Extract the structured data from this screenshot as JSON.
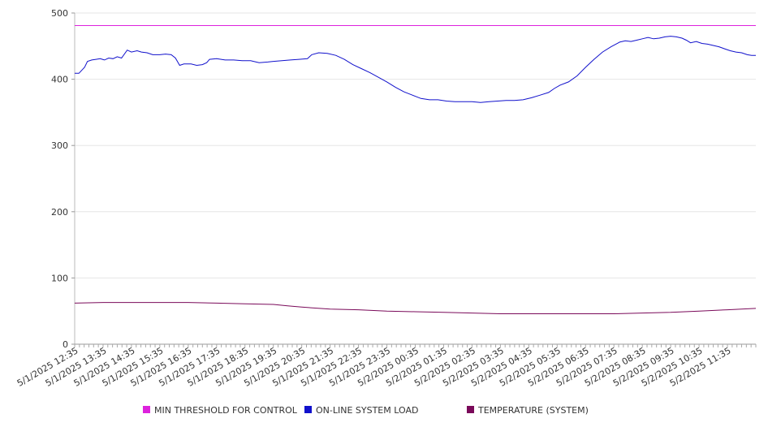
{
  "chart_data": {
    "type": "line",
    "grid": true,
    "legend_placement": "bottom",
    "ylim": [
      0,
      500
    ],
    "yticks": [
      0,
      100,
      200,
      300,
      400,
      500
    ],
    "x_tick_labels": [
      "5/1/2025 12:35",
      "5/1/2025 13:35",
      "5/1/2025 14:35",
      "5/1/2025 15:35",
      "5/1/2025 16:35",
      "5/1/2025 17:35",
      "5/1/2025 18:35",
      "5/1/2025 19:35",
      "5/1/2025 20:35",
      "5/1/2025 21:35",
      "5/1/2025 22:35",
      "5/1/2025 23:35",
      "5/2/2025 00:35",
      "5/2/2025 01:35",
      "5/2/2025 02:35",
      "5/2/2025 03:35",
      "5/2/2025 04:35",
      "5/2/2025 05:35",
      "5/2/2025 06:35",
      "5/2/2025 07:35",
      "5/2/2025 08:35",
      "5/2/2025 09:35",
      "5/2/2025 10:35",
      "5/2/2025 11:35"
    ],
    "x_range_hours": [
      0,
      24
    ],
    "series": [
      {
        "name": "MIN THRESHOLD FOR CONTROL",
        "color": "#dd22dd",
        "points": [
          [
            0,
            481
          ],
          [
            24,
            481
          ]
        ]
      },
      {
        "name": "ON-LINE SYSTEM LOAD",
        "color": "#1111cc",
        "points": [
          [
            0,
            409
          ],
          [
            0.15,
            409
          ],
          [
            0.35,
            418
          ],
          [
            0.45,
            427
          ],
          [
            0.6,
            429
          ],
          [
            0.75,
            430
          ],
          [
            0.9,
            431
          ],
          [
            1.05,
            429
          ],
          [
            1.2,
            432
          ],
          [
            1.35,
            431
          ],
          [
            1.5,
            434
          ],
          [
            1.65,
            432
          ],
          [
            1.85,
            444
          ],
          [
            2.0,
            441
          ],
          [
            2.2,
            443
          ],
          [
            2.35,
            441
          ],
          [
            2.55,
            440
          ],
          [
            2.75,
            437
          ],
          [
            3.0,
            437
          ],
          [
            3.2,
            438
          ],
          [
            3.4,
            437
          ],
          [
            3.55,
            432
          ],
          [
            3.7,
            421
          ],
          [
            3.85,
            423
          ],
          [
            4.1,
            423
          ],
          [
            4.3,
            421
          ],
          [
            4.5,
            422
          ],
          [
            4.65,
            425
          ],
          [
            4.75,
            430
          ],
          [
            5.0,
            431
          ],
          [
            5.3,
            429
          ],
          [
            5.6,
            429
          ],
          [
            5.9,
            428
          ],
          [
            6.2,
            428
          ],
          [
            6.5,
            425
          ],
          [
            6.8,
            426
          ],
          [
            7.0,
            427
          ],
          [
            7.3,
            428
          ],
          [
            7.6,
            429
          ],
          [
            7.9,
            430
          ],
          [
            8.2,
            431
          ],
          [
            8.35,
            437
          ],
          [
            8.6,
            440
          ],
          [
            8.9,
            439
          ],
          [
            9.2,
            436
          ],
          [
            9.5,
            430
          ],
          [
            9.8,
            422
          ],
          [
            10.1,
            416
          ],
          [
            10.4,
            410
          ],
          [
            10.7,
            403
          ],
          [
            11.0,
            396
          ],
          [
            11.3,
            388
          ],
          [
            11.6,
            381
          ],
          [
            11.9,
            376
          ],
          [
            12.2,
            371
          ],
          [
            12.5,
            369
          ],
          [
            12.8,
            369
          ],
          [
            13.1,
            367
          ],
          [
            13.4,
            366
          ],
          [
            13.7,
            366
          ],
          [
            14.0,
            366
          ],
          [
            14.3,
            365
          ],
          [
            14.6,
            366
          ],
          [
            14.9,
            367
          ],
          [
            15.2,
            368
          ],
          [
            15.5,
            368
          ],
          [
            15.8,
            369
          ],
          [
            16.1,
            372
          ],
          [
            16.4,
            376
          ],
          [
            16.7,
            380
          ],
          [
            16.9,
            386
          ],
          [
            17.1,
            391
          ],
          [
            17.4,
            396
          ],
          [
            17.7,
            405
          ],
          [
            18.0,
            418
          ],
          [
            18.3,
            430
          ],
          [
            18.6,
            441
          ],
          [
            18.9,
            449
          ],
          [
            19.2,
            456
          ],
          [
            19.4,
            458
          ],
          [
            19.6,
            457
          ],
          [
            19.8,
            459
          ],
          [
            20.0,
            461
          ],
          [
            20.2,
            463
          ],
          [
            20.4,
            461
          ],
          [
            20.6,
            462
          ],
          [
            20.8,
            464
          ],
          [
            21.0,
            465
          ],
          [
            21.2,
            464
          ],
          [
            21.4,
            462
          ],
          [
            21.55,
            459
          ],
          [
            21.7,
            455
          ],
          [
            21.9,
            457
          ],
          [
            22.1,
            454
          ],
          [
            22.3,
            453
          ],
          [
            22.5,
            451
          ],
          [
            22.7,
            449
          ],
          [
            22.9,
            446
          ],
          [
            23.1,
            443
          ],
          [
            23.3,
            441
          ],
          [
            23.5,
            440
          ],
          [
            23.7,
            437
          ],
          [
            23.85,
            436
          ],
          [
            24.0,
            436
          ]
        ]
      },
      {
        "name": "TEMPERATURE (SYSTEM)",
        "color": "#7a0a5a",
        "points": [
          [
            0,
            62
          ],
          [
            1,
            63
          ],
          [
            2,
            63
          ],
          [
            3,
            63
          ],
          [
            4,
            63
          ],
          [
            5,
            62
          ],
          [
            6,
            61
          ],
          [
            7,
            60
          ],
          [
            7.5,
            58
          ],
          [
            8,
            56
          ],
          [
            9,
            53
          ],
          [
            10,
            52
          ],
          [
            11,
            50
          ],
          [
            12,
            49
          ],
          [
            13,
            48
          ],
          [
            14,
            47
          ],
          [
            15,
            46
          ],
          [
            16,
            46
          ],
          [
            17,
            46
          ],
          [
            18,
            46
          ],
          [
            19,
            46
          ],
          [
            20,
            47
          ],
          [
            21,
            48
          ],
          [
            22,
            50
          ],
          [
            23,
            52
          ],
          [
            24,
            54
          ]
        ]
      }
    ]
  }
}
